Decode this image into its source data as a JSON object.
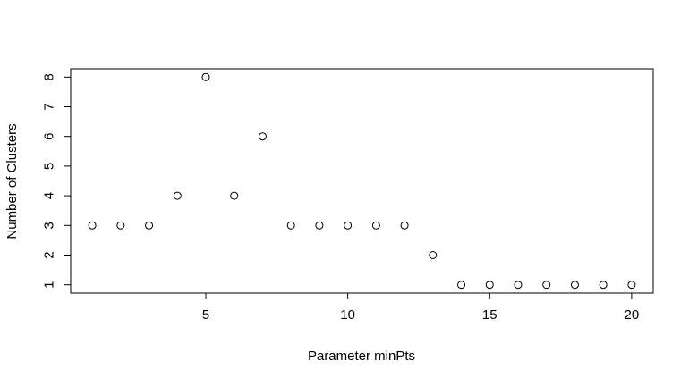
{
  "chart_data": {
    "type": "scatter",
    "title": "",
    "xlabel": "Parameter minPts",
    "ylabel": "Number of Clusters",
    "x": [
      1,
      2,
      3,
      4,
      5,
      6,
      7,
      8,
      9,
      10,
      11,
      12,
      13,
      14,
      15,
      16,
      17,
      18,
      19,
      20
    ],
    "y": [
      3,
      3,
      3,
      4,
      8,
      4,
      6,
      3,
      3,
      3,
      3,
      3,
      2,
      1,
      1,
      1,
      1,
      1,
      1,
      1
    ],
    "xlim": [
      0.24,
      20.76
    ],
    "ylim": [
      0.72,
      8.28
    ],
    "x_ticks": [
      5,
      10,
      15,
      20
    ],
    "y_ticks": [
      1,
      2,
      3,
      4,
      5,
      6,
      7,
      8
    ],
    "x_tick_labels": [
      "5",
      "10",
      "15",
      "20"
    ],
    "y_tick_labels": [
      "1",
      "2",
      "3",
      "4",
      "5",
      "6",
      "7",
      "8"
    ],
    "marker": "open-circle",
    "grid": false,
    "legend": false,
    "colors": {
      "axis": "#000000",
      "marker_stroke": "#000000",
      "marker_fill": "none",
      "background": "#ffffff"
    }
  }
}
